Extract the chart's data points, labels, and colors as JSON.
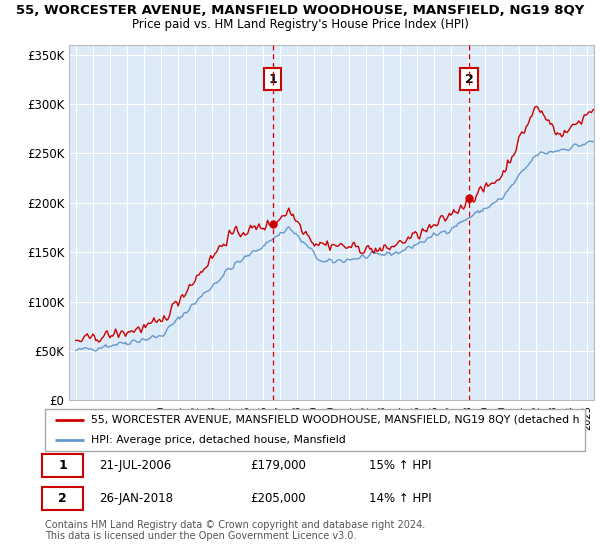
{
  "title": "55, WORCESTER AVENUE, MANSFIELD WOODHOUSE, MANSFIELD, NG19 8QY",
  "subtitle": "Price paid vs. HM Land Registry's House Price Index (HPI)",
  "bg_color": "#ddeaf7",
  "red_color": "#cc0000",
  "blue_color": "#6699cc",
  "ylim": [
    0,
    360000
  ],
  "yticks": [
    0,
    50000,
    100000,
    150000,
    200000,
    250000,
    300000,
    350000
  ],
  "ytick_labels": [
    "£0",
    "£50K",
    "£100K",
    "£150K",
    "£200K",
    "£250K",
    "£300K",
    "£350K"
  ],
  "xlim_start": 1994.6,
  "xlim_end": 2025.4,
  "sale1_x": 2006.55,
  "sale1_y": 179000,
  "sale2_x": 2018.08,
  "sale2_y": 205000,
  "legend_line1": "55, WORCESTER AVENUE, MANSFIELD WOODHOUSE, MANSFIELD, NG19 8QY (detached h",
  "legend_line2": "HPI: Average price, detached house, Mansfield",
  "sale1_date": "21-JUL-2006",
  "sale1_price": "£179,000",
  "sale1_hpi": "15% ↑ HPI",
  "sale2_date": "26-JAN-2018",
  "sale2_price": "£205,000",
  "sale2_hpi": "14% ↑ HPI",
  "footer": "Contains HM Land Registry data © Crown copyright and database right 2024.\nThis data is licensed under the Open Government Licence v3.0."
}
